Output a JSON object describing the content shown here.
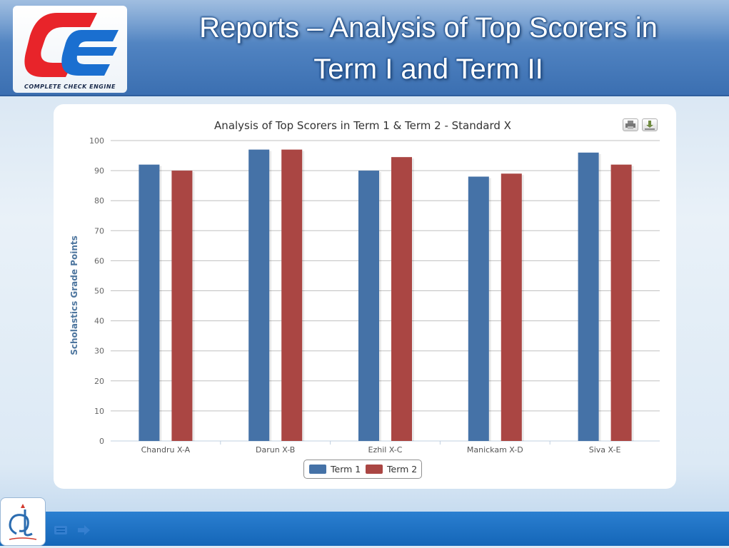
{
  "slide": {
    "title_line1": "Reports – Analysis of Top Scorers in",
    "title_line2": "Term I and Term II",
    "logo_caption": "COMPLETE CHECK ENGINE"
  },
  "icons": {
    "print": "print-icon",
    "download": "download-icon",
    "menu": "menu-icon",
    "next": "arrow-right-icon"
  },
  "colors": {
    "term1": "#4572a7",
    "term2": "#aa4643",
    "header_blue": "#4d80bf",
    "footer_blue": "#1466b8"
  },
  "chart_data": {
    "type": "bar",
    "title": "Analysis of Top Scorers in Term 1 & Term 2 - Standard X",
    "xlabel": "",
    "ylabel": "Scholastics Grade Points",
    "categories": [
      "Chandru X-A",
      "Darun X-B",
      "Ezhil X-C",
      "Manickam X-D",
      "Siva X-E"
    ],
    "series": [
      {
        "name": "Term 1",
        "values": [
          92,
          97,
          90,
          88,
          96
        ]
      },
      {
        "name": "Term 2",
        "values": [
          90,
          97,
          94.5,
          89,
          92
        ]
      }
    ],
    "ylim": [
      0,
      100
    ],
    "yticks": [
      0,
      10,
      20,
      30,
      40,
      50,
      60,
      70,
      80,
      90,
      100
    ],
    "grid": true,
    "legend": "bottom-center"
  }
}
